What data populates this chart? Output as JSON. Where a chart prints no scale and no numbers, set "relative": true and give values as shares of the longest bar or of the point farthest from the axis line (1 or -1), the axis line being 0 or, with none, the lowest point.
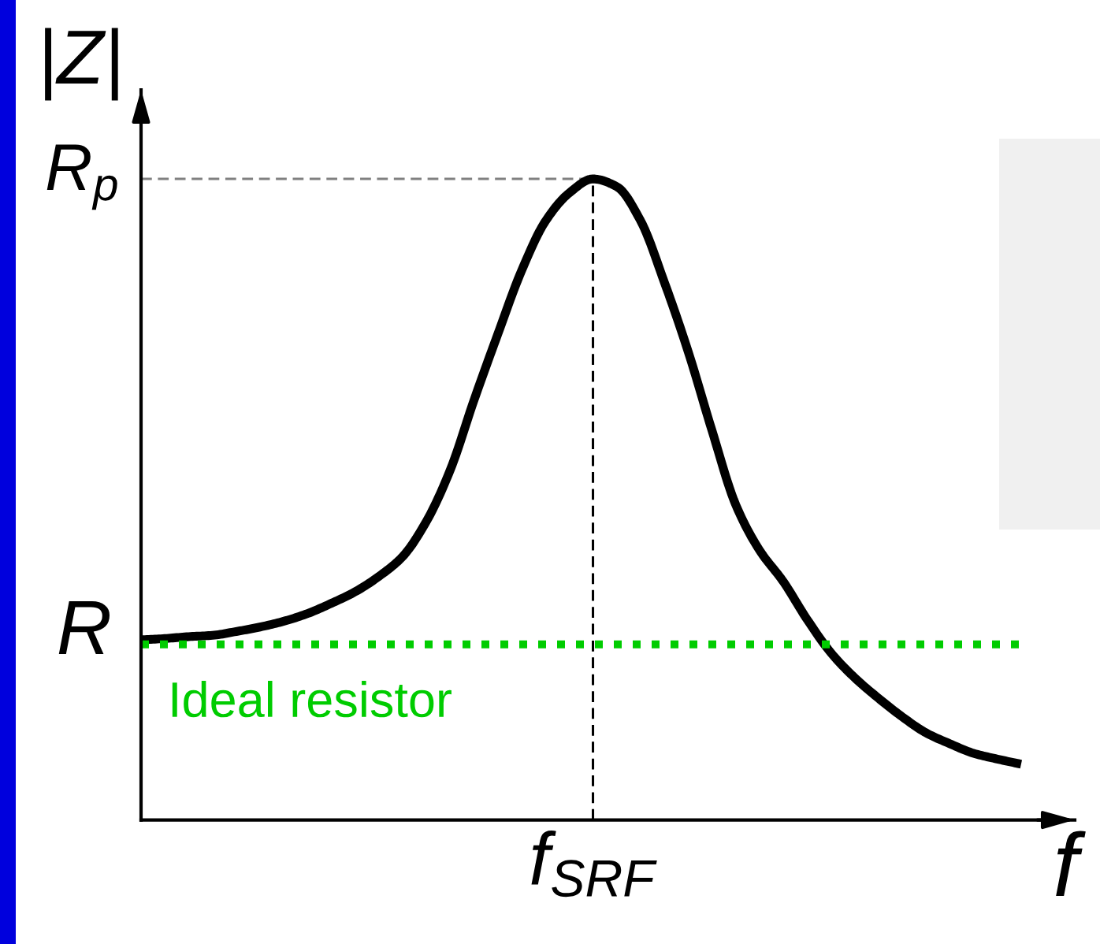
{
  "chart_data": {
    "type": "line",
    "relative": true,
    "xlabel": "f",
    "ylabel": "|Z|",
    "categories": [
      null,
      null,
      null,
      null,
      null,
      null,
      null,
      null,
      null,
      null,
      null,
      null,
      null,
      null,
      null,
      null,
      null,
      null,
      null,
      null,
      null,
      null,
      null,
      null,
      null,
      null,
      null,
      null,
      null,
      null,
      null,
      null,
      null,
      null,
      null,
      null,
      null,
      null
    ],
    "series": [
      {
        "color": "#000000",
        "line_style": "solid",
        "values": [
          0.281,
          0.283,
          0.286,
          0.288,
          0.294,
          0.301,
          0.31,
          0.322,
          0.338,
          0.356,
          0.38,
          0.411,
          0.466,
          0.546,
          0.655,
          0.758,
          0.857,
          0.934,
          0.978,
          1,
          0.988,
          0.935,
          0.839,
          0.731,
          0.608,
          0.492,
          0.421,
          0.372,
          0.313,
          0.261,
          0.222,
          0.19,
          0.161,
          0.136,
          0.119,
          0.104,
          0.095,
          0.087
        ]
      },
      {
        "name": "Ideal resistor",
        "color": "#00cc00",
        "line_style": "dotted",
        "values": [
          0.274,
          0.274,
          0.274,
          0.274,
          0.274,
          0.274,
          0.274,
          0.274,
          0.274,
          0.274,
          0.274,
          0.274,
          0.274,
          0.274,
          0.274,
          0.274,
          0.274,
          0.274,
          0.274,
          0.274,
          0.274,
          0.274,
          0.274,
          0.274,
          0.274,
          0.274,
          0.274,
          0.274,
          0.274,
          0.274,
          0.274,
          0.274,
          0.274,
          0.274,
          0.274,
          0.274,
          0.274,
          0.274
        ]
      }
    ],
    "ref_lines": [
      {
        "axis": "y",
        "value": 1,
        "label": "R$_{p}$",
        "color": "#808080",
        "line_style": "dashed"
      }
    ],
    "annotations": [
      "R",
      "f$_{SRF}$"
    ]
  }
}
